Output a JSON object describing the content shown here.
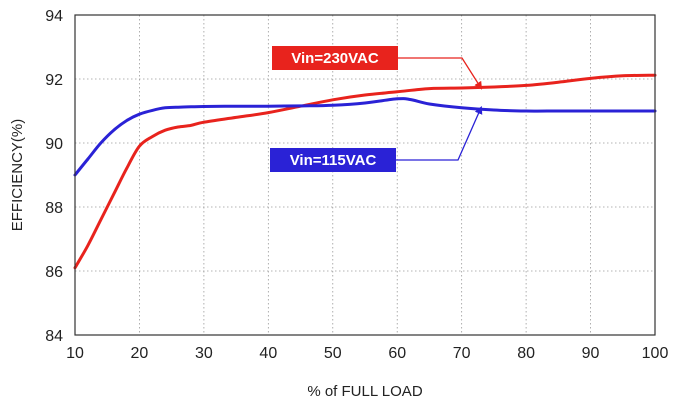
{
  "chart_data": {
    "type": "line",
    "title": "",
    "xlabel": "% of FULL LOAD",
    "ylabel": "EFFICIENCY(%)",
    "xlim": [
      10,
      100
    ],
    "ylim": [
      84,
      94
    ],
    "xticks": [
      10,
      20,
      30,
      40,
      50,
      60,
      70,
      80,
      90,
      100
    ],
    "yticks": [
      84,
      86,
      88,
      90,
      92,
      94
    ],
    "grid": true,
    "series": [
      {
        "name": "Vin=230VAC",
        "color": "#e8231d",
        "x": [
          10,
          12,
          14,
          16,
          18,
          20,
          22,
          24,
          26,
          28,
          30,
          35,
          40,
          45,
          50,
          55,
          60,
          65,
          70,
          75,
          80,
          85,
          90,
          95,
          100
        ],
        "y": [
          86.1,
          86.8,
          87.6,
          88.4,
          89.2,
          89.9,
          90.2,
          90.4,
          90.5,
          90.55,
          90.65,
          90.8,
          90.95,
          91.15,
          91.35,
          91.5,
          91.6,
          91.7,
          91.72,
          91.75,
          91.8,
          91.9,
          92.02,
          92.1,
          92.12
        ]
      },
      {
        "name": "Vin=115VAC",
        "color": "#2a22d6",
        "x": [
          10,
          12,
          14,
          16,
          18,
          20,
          22,
          24,
          26,
          28,
          30,
          35,
          40,
          45,
          50,
          55,
          60,
          62,
          65,
          70,
          75,
          80,
          85,
          90,
          95,
          100
        ],
        "y": [
          89.0,
          89.5,
          90.0,
          90.4,
          90.7,
          90.9,
          91.02,
          91.1,
          91.12,
          91.13,
          91.14,
          91.15,
          91.15,
          91.16,
          91.18,
          91.25,
          91.38,
          91.36,
          91.22,
          91.1,
          91.03,
          91.0,
          91.0,
          91.0,
          91.0,
          91.0
        ]
      }
    ],
    "annotations": [
      {
        "text": "Vin=230VAC",
        "series": "Vin=230VAC",
        "color": "#e8231d",
        "target_x": 73,
        "target_y": 91.72
      },
      {
        "text": "Vin=115VAC",
        "series": "Vin=115VAC",
        "color": "#2a22d6",
        "target_x": 73,
        "target_y": 91.1
      }
    ]
  }
}
